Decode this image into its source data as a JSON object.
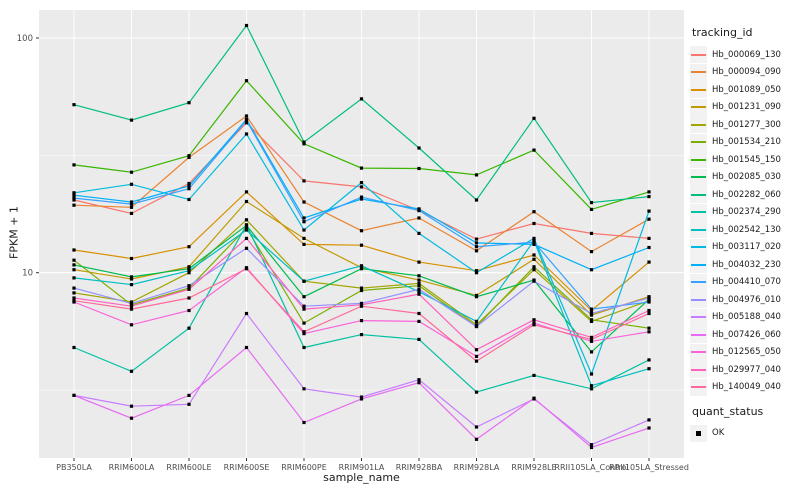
{
  "axes": {
    "x": {
      "label": "sample_name"
    },
    "y": {
      "label": "FPKM + 1",
      "ticks": [
        {
          "label": "100",
          "value": 100
        },
        {
          "label": "10",
          "value": 10
        }
      ],
      "minor_ticks": [
        3.162,
        31.62
      ]
    }
  },
  "legend": {
    "tracking_title": "tracking_id",
    "quant_title": "quant_status",
    "quant_items": [
      {
        "label": "OK",
        "marker_color": "#000000"
      }
    ]
  },
  "style_colors": {
    "panel_background": "#EBEBEB",
    "gridline": "#FFFFFF",
    "tick_text": "#4D4D4D",
    "point_color": "#000000"
  },
  "chart_data": {
    "type": "line",
    "yscale": "log10",
    "ylim": [
      1.63,
      131.6
    ],
    "grid": "on",
    "legend_position": "right",
    "xlabel": "sample_name",
    "ylabel": "FPKM + 1",
    "point_marker": "filled-square",
    "categories": [
      "PB350LA",
      "RRIM600LA",
      "RRIM600LE",
      "RRIM600SE",
      "RRIM600PE",
      "RRIM901LA",
      "RRIM928BA",
      "RRIM928LA",
      "RRIM928LE",
      "RRII105LA_Control",
      "RRII105LA_Stressed"
    ],
    "series": [
      {
        "name": "Hb_000069_130",
        "color": "#F8766D",
        "values": [
          20.4,
          17.9,
          24.0,
          43.5,
          24.6,
          23.2,
          18.4,
          13.9,
          16.2,
          14.7,
          14.0
        ]
      },
      {
        "name": "Hb_000094_090",
        "color": "#EA8331",
        "values": [
          19.4,
          19.0,
          31.0,
          46.5,
          20.0,
          15.1,
          17.1,
          12.4,
          18.2,
          12.3,
          16.9
        ]
      },
      {
        "name": "Hb_001089_050",
        "color": "#D89000",
        "values": [
          12.5,
          11.5,
          12.9,
          22.1,
          13.2,
          13.1,
          11.1,
          10.2,
          11.9,
          6.9,
          11.1
        ]
      },
      {
        "name": "Hb_001231_090",
        "color": "#C09B00",
        "values": [
          10.3,
          9.4,
          10.6,
          20.1,
          14.0,
          10.5,
          9.3,
          8.0,
          11.4,
          6.6,
          7.9
        ]
      },
      {
        "name": "Hb_001277_300",
        "color": "#A3A500",
        "values": [
          8.2,
          7.5,
          10.0,
          16.8,
          9.2,
          8.6,
          9.0,
          6.0,
          10.3,
          6.2,
          7.6
        ]
      },
      {
        "name": "Hb_001534_210",
        "color": "#7CAE00",
        "values": [
          11.3,
          7.3,
          8.6,
          15.5,
          6.1,
          8.4,
          8.8,
          5.9,
          10.6,
          6.3,
          5.8
        ]
      },
      {
        "name": "Hb_001545_150",
        "color": "#39B600",
        "values": [
          28.8,
          26.8,
          31.5,
          65.8,
          35.4,
          27.9,
          27.8,
          26.1,
          33.3,
          18.6,
          22.1
        ]
      },
      {
        "name": "Hb_002085_030",
        "color": "#00BB4E",
        "values": [
          10.8,
          9.6,
          10.4,
          15.9,
          7.9,
          10.4,
          9.7,
          7.9,
          9.3,
          4.6,
          7.7
        ]
      },
      {
        "name": "Hb_002282_060",
        "color": "#00BF7D",
        "values": [
          52.0,
          44.7,
          53.0,
          113.0,
          36.0,
          55.0,
          34.0,
          20.4,
          45.5,
          19.9,
          21.1
        ]
      },
      {
        "name": "Hb_002374_290",
        "color": "#00C1A3",
        "values": [
          4.8,
          3.8,
          5.8,
          16.0,
          4.8,
          5.45,
          5.2,
          3.1,
          3.65,
          3.2,
          4.25
        ]
      },
      {
        "name": "Hb_002542_130",
        "color": "#00BFC4",
        "values": [
          9.5,
          8.9,
          10.2,
          15.2,
          9.2,
          10.7,
          8.3,
          6.2,
          13.7,
          3.3,
          3.9
        ]
      },
      {
        "name": "Hb_003117_020",
        "color": "#00BAE0",
        "values": [
          21.9,
          23.8,
          20.5,
          39.0,
          15.2,
          24.2,
          14.7,
          10.0,
          14.0,
          3.7,
          18.3
        ]
      },
      {
        "name": "Hb_004032_230",
        "color": "#00B0F6",
        "values": [
          21.4,
          20.0,
          23.4,
          45.0,
          17.1,
          20.6,
          18.7,
          13.4,
          13.2,
          10.3,
          12.8
        ]
      },
      {
        "name": "Hb_004410_070",
        "color": "#35A2FF",
        "values": [
          20.8,
          19.6,
          22.8,
          44.5,
          16.5,
          21.0,
          18.4,
          12.9,
          13.5,
          7.0,
          7.5
        ]
      },
      {
        "name": "Hb_004976_010",
        "color": "#9590FF",
        "values": [
          8.6,
          7.4,
          8.8,
          12.7,
          7.2,
          7.4,
          8.5,
          5.9,
          9.2,
          6.7,
          7.8
        ]
      },
      {
        "name": "Hb_005188_040",
        "color": "#C77CFF",
        "values": [
          3.0,
          2.7,
          2.75,
          6.7,
          3.2,
          2.95,
          3.5,
          2.2,
          2.9,
          1.85,
          2.36
        ]
      },
      {
        "name": "Hb_007426_060",
        "color": "#E76BF3",
        "values": [
          3.0,
          2.4,
          3.0,
          4.8,
          2.3,
          2.9,
          3.4,
          1.95,
          2.92,
          1.8,
          2.18
        ]
      },
      {
        "name": "Hb_012565_050",
        "color": "#FA62DB",
        "values": [
          7.5,
          6.0,
          6.9,
          10.5,
          5.5,
          6.25,
          6.2,
          4.4,
          6.1,
          5.1,
          5.6
        ]
      },
      {
        "name": "Hb_029977_040",
        "color": "#FF62BC",
        "values": [
          7.8,
          7.2,
          8.5,
          14.0,
          7.0,
          7.3,
          8.1,
          4.7,
          6.3,
          5.3,
          6.9
        ]
      },
      {
        "name": "Hb_140049_040",
        "color": "#FF6A98",
        "values": [
          7.6,
          7.0,
          7.8,
          10.4,
          5.6,
          7.2,
          6.7,
          4.2,
          6.0,
          5.2,
          6.7
        ]
      }
    ]
  }
}
